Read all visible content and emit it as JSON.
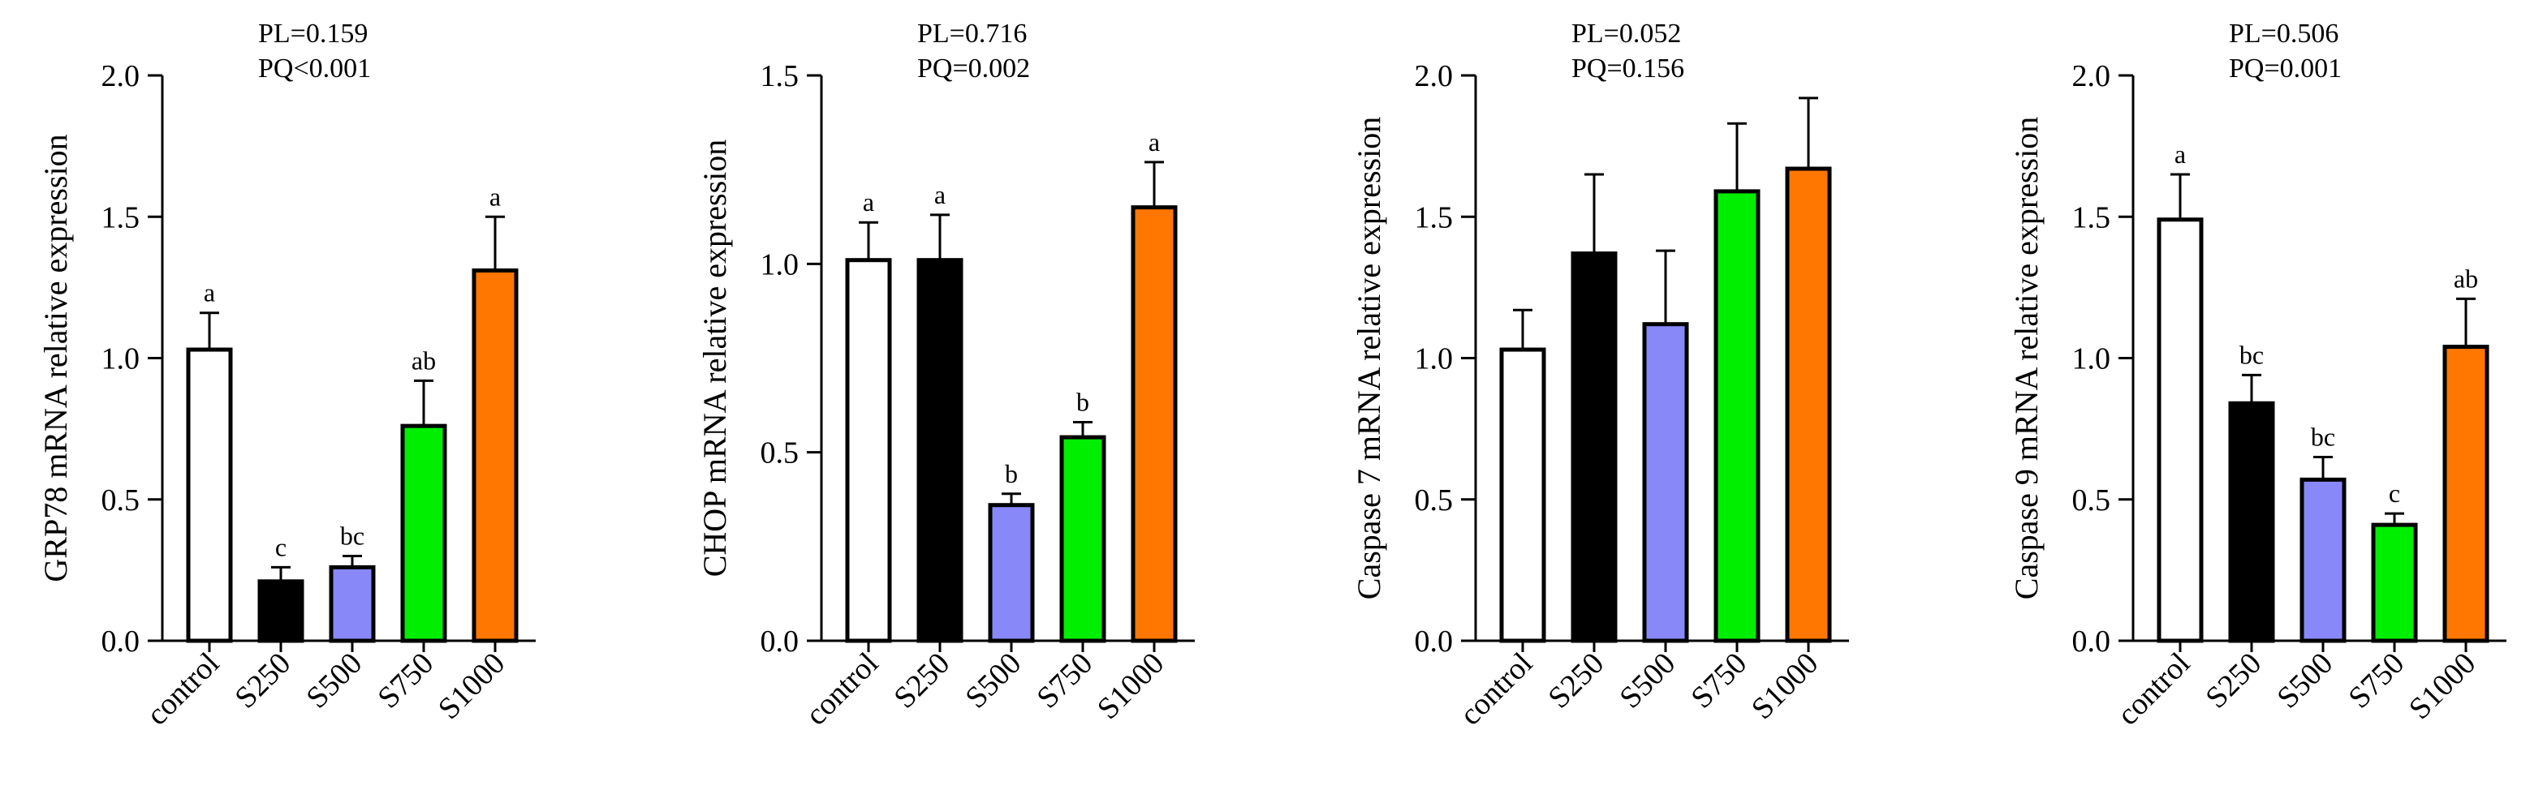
{
  "categories": [
    "control",
    "S250",
    "S500",
    "S750",
    "S1000"
  ],
  "bar_colors": [
    "#ffffff",
    "#000000",
    "#8888f8",
    "#00ee00",
    "#ff7700"
  ],
  "chart_data": [
    {
      "type": "bar",
      "ylabel": "GRP78 mRNA relative expression",
      "pl": "PL=0.159",
      "pq": "PQ<0.001",
      "ylim": [
        0,
        2.0
      ],
      "yticks": [
        "0.0",
        "0.5",
        "1.0",
        "1.5",
        "2.0"
      ],
      "values": [
        1.03,
        0.21,
        0.26,
        0.76,
        1.31
      ],
      "errors": [
        0.13,
        0.05,
        0.04,
        0.16,
        0.19
      ],
      "letters": [
        "a",
        "c",
        "bc",
        "ab",
        "a"
      ]
    },
    {
      "type": "bar",
      "ylabel": "CHOP mRNA relative expression",
      "pl": "PL=0.716",
      "pq": "PQ=0.002",
      "ylim": [
        0,
        1.5
      ],
      "yticks": [
        "0.0",
        "0.5",
        "1.0",
        "1.5"
      ],
      "values": [
        1.01,
        1.01,
        0.36,
        0.54,
        1.15
      ],
      "errors": [
        0.1,
        0.12,
        0.03,
        0.04,
        0.12
      ],
      "letters": [
        "a",
        "a",
        "b",
        "b",
        "a"
      ]
    },
    {
      "type": "bar",
      "ylabel": "Caspase 7 mRNA relative expression",
      "pl": "PL=0.052",
      "pq": "PQ=0.156",
      "ylim": [
        0,
        2.0
      ],
      "yticks": [
        "0.0",
        "0.5",
        "1.0",
        "1.5",
        "2.0"
      ],
      "values": [
        1.03,
        1.37,
        1.12,
        1.59,
        1.67
      ],
      "errors": [
        0.14,
        0.28,
        0.26,
        0.24,
        0.25
      ],
      "letters": [
        "",
        "",
        "",
        "",
        ""
      ]
    },
    {
      "type": "bar",
      "ylabel": "Caspase 9 mRNA relative expression",
      "pl": "PL=0.506",
      "pq": "PQ=0.001",
      "ylim": [
        0,
        2.0
      ],
      "yticks": [
        "0.0",
        "0.5",
        "1.0",
        "1.5",
        "2.0"
      ],
      "values": [
        1.49,
        0.84,
        0.57,
        0.41,
        1.04
      ],
      "errors": [
        0.16,
        0.1,
        0.08,
        0.04,
        0.17
      ],
      "letters": [
        "a",
        "bc",
        "bc",
        "c",
        "ab"
      ]
    }
  ]
}
